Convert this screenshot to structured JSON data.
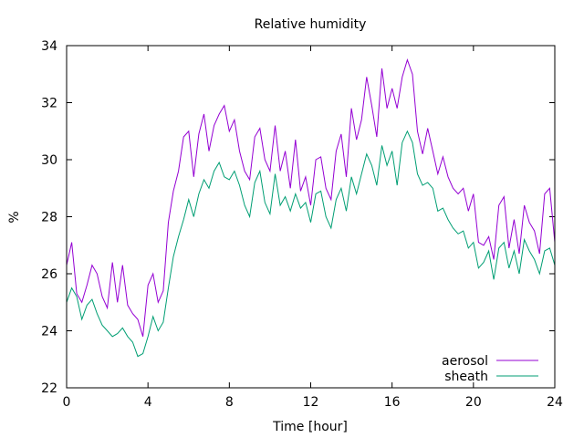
{
  "chart_data": {
    "type": "line",
    "title": "Relative humidity",
    "xlabel": "Time [hour]",
    "ylabel": "%",
    "xlim": [
      0,
      24
    ],
    "ylim": [
      22,
      34
    ],
    "xticks": [
      0,
      4,
      8,
      12,
      16,
      20,
      24
    ],
    "yticks": [
      22,
      24,
      26,
      28,
      30,
      32,
      34
    ],
    "grid": false,
    "legend": "bottom-right",
    "series": [
      {
        "name": "aerosol",
        "color": "#9400d3",
        "x": [
          0,
          0.25,
          0.5,
          0.75,
          1,
          1.25,
          1.5,
          1.75,
          2,
          2.25,
          2.5,
          2.75,
          3,
          3.25,
          3.5,
          3.75,
          4,
          4.25,
          4.5,
          4.75,
          5,
          5.25,
          5.5,
          5.75,
          6,
          6.25,
          6.5,
          6.75,
          7,
          7.25,
          7.5,
          7.75,
          8,
          8.25,
          8.5,
          8.75,
          9,
          9.25,
          9.5,
          9.75,
          10,
          10.25,
          10.5,
          10.75,
          11,
          11.25,
          11.5,
          11.75,
          12,
          12.25,
          12.5,
          12.75,
          13,
          13.25,
          13.5,
          13.75,
          14,
          14.25,
          14.5,
          14.75,
          15,
          15.25,
          15.5,
          15.75,
          16,
          16.25,
          16.5,
          16.75,
          17,
          17.25,
          17.5,
          17.75,
          18,
          18.25,
          18.5,
          18.75,
          19,
          19.25,
          19.5,
          19.75,
          20,
          20.25,
          20.5,
          20.75,
          21,
          21.25,
          21.5,
          21.75,
          22,
          22.25,
          22.5,
          22.75,
          23,
          23.25,
          23.5,
          23.75,
          24
        ],
        "values": [
          26.3,
          27.1,
          25.3,
          25.0,
          25.6,
          26.3,
          26.0,
          25.2,
          24.8,
          26.4,
          25.0,
          26.3,
          24.9,
          24.6,
          24.4,
          23.8,
          25.6,
          26.0,
          25.0,
          25.4,
          27.8,
          28.9,
          29.6,
          30.8,
          31.0,
          29.4,
          30.9,
          31.6,
          30.3,
          31.2,
          31.6,
          31.9,
          31.0,
          31.4,
          30.3,
          29.6,
          29.3,
          30.8,
          31.1,
          30.0,
          29.6,
          31.2,
          29.6,
          30.3,
          29.0,
          30.7,
          28.9,
          29.4,
          28.4,
          30.0,
          30.1,
          29.0,
          28.6,
          30.3,
          30.9,
          29.4,
          31.8,
          30.7,
          31.4,
          32.9,
          31.9,
          30.8,
          33.2,
          31.8,
          32.5,
          31.8,
          32.9,
          33.5,
          33.0,
          31.0,
          30.2,
          31.1,
          30.3,
          29.5,
          30.1,
          29.4,
          29.0,
          28.8,
          29.0,
          28.2,
          28.8,
          27.1,
          27.0,
          27.3,
          26.5,
          28.4,
          28.7,
          26.9,
          27.9,
          26.7,
          28.4,
          27.8,
          27.5,
          26.7,
          28.8,
          29.0,
          27.1
        ]
      },
      {
        "name": "sheath",
        "color": "#009e73",
        "x": [
          0,
          0.25,
          0.5,
          0.75,
          1,
          1.25,
          1.5,
          1.75,
          2,
          2.25,
          2.5,
          2.75,
          3,
          3.25,
          3.5,
          3.75,
          4,
          4.25,
          4.5,
          4.75,
          5,
          5.25,
          5.5,
          5.75,
          6,
          6.25,
          6.5,
          6.75,
          7,
          7.25,
          7.5,
          7.75,
          8,
          8.25,
          8.5,
          8.75,
          9,
          9.25,
          9.5,
          9.75,
          10,
          10.25,
          10.5,
          10.75,
          11,
          11.25,
          11.5,
          11.75,
          12,
          12.25,
          12.5,
          12.75,
          13,
          13.25,
          13.5,
          13.75,
          14,
          14.25,
          14.5,
          14.75,
          15,
          15.25,
          15.5,
          15.75,
          16,
          16.25,
          16.5,
          16.75,
          17,
          17.25,
          17.5,
          17.75,
          18,
          18.25,
          18.5,
          18.75,
          19,
          19.25,
          19.5,
          19.75,
          20,
          20.25,
          20.5,
          20.75,
          21,
          21.25,
          21.5,
          21.75,
          22,
          22.25,
          22.5,
          22.75,
          23,
          23.25,
          23.5,
          23.75,
          24
        ],
        "values": [
          25.0,
          25.5,
          25.2,
          24.4,
          24.9,
          25.1,
          24.6,
          24.2,
          24.0,
          23.8,
          23.9,
          24.1,
          23.8,
          23.6,
          23.1,
          23.2,
          23.8,
          24.5,
          24.0,
          24.3,
          25.5,
          26.6,
          27.3,
          27.9,
          28.6,
          28.0,
          28.8,
          29.3,
          29.0,
          29.6,
          29.9,
          29.4,
          29.3,
          29.6,
          29.1,
          28.4,
          28.0,
          29.2,
          29.6,
          28.5,
          28.1,
          29.5,
          28.4,
          28.7,
          28.2,
          28.8,
          28.3,
          28.5,
          27.8,
          28.8,
          28.9,
          28.0,
          27.6,
          28.6,
          29.0,
          28.2,
          29.4,
          28.8,
          29.5,
          30.2,
          29.8,
          29.1,
          30.5,
          29.8,
          30.3,
          29.1,
          30.6,
          31.0,
          30.6,
          29.5,
          29.1,
          29.2,
          29.0,
          28.2,
          28.3,
          27.9,
          27.6,
          27.4,
          27.5,
          26.9,
          27.1,
          26.2,
          26.4,
          26.8,
          25.8,
          26.9,
          27.1,
          26.2,
          26.8,
          26.0,
          27.2,
          26.8,
          26.5,
          26.0,
          26.8,
          26.9,
          26.3
        ]
      }
    ]
  }
}
